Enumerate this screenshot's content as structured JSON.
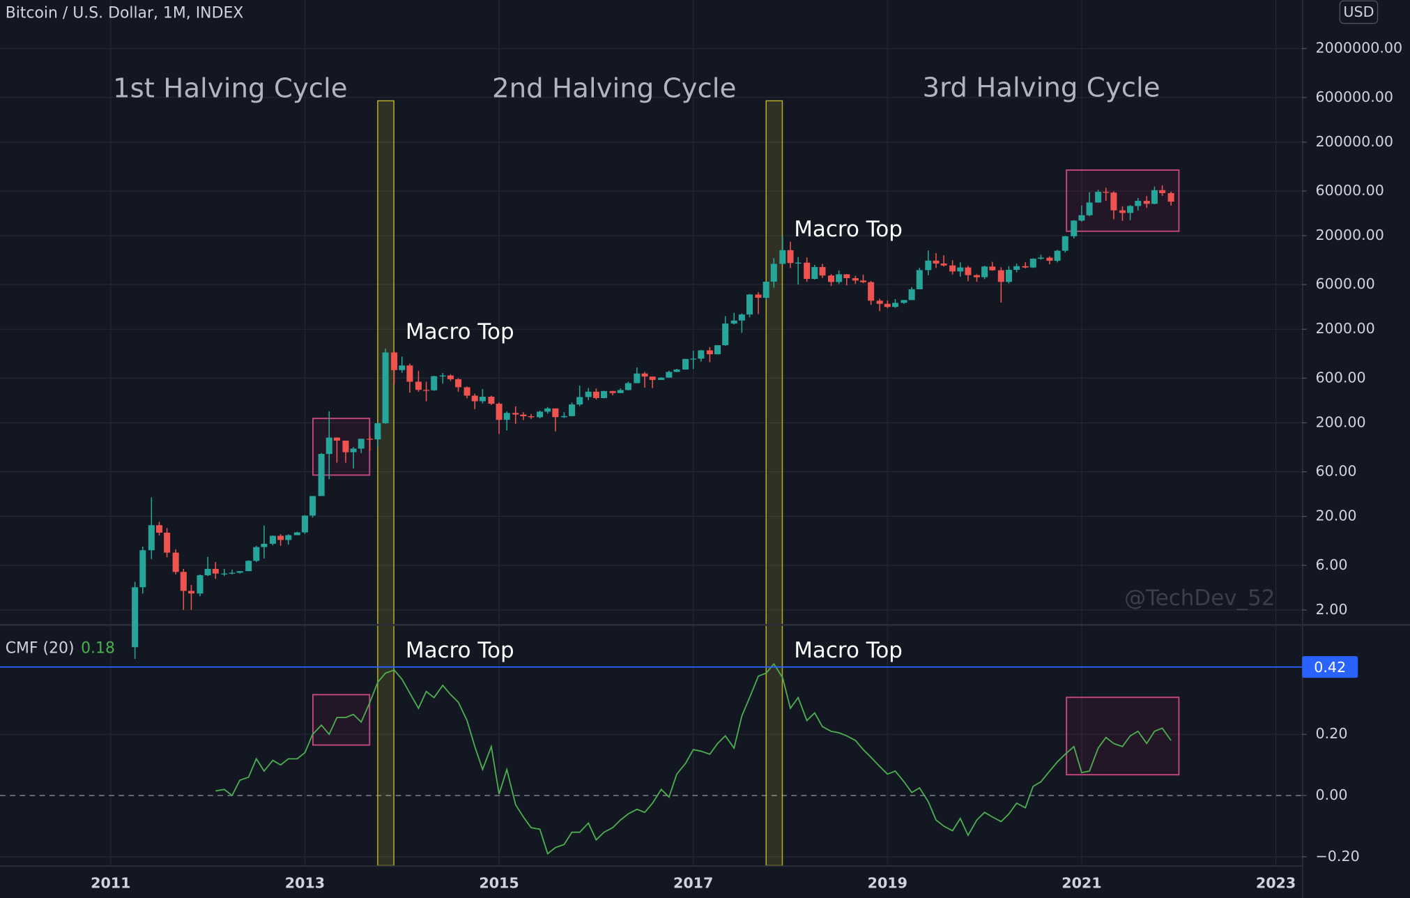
{
  "chart_data": {
    "type": "candlestick",
    "title": "Bitcoin / U.S. Dollar, 1M, INDEX",
    "currency": "USD",
    "x": [
      2011.25,
      2011.33,
      2011.42,
      2011.5,
      2011.58,
      2011.67,
      2011.75,
      2011.83,
      2011.92,
      2012,
      2012.08,
      2012.17,
      2012.25,
      2012.33,
      2012.42,
      2012.5,
      2012.58,
      2012.67,
      2012.75,
      2012.83,
      2012.92,
      2013,
      2013.08,
      2013.17,
      2013.25,
      2013.33,
      2013.42,
      2013.5,
      2013.58,
      2013.67,
      2013.75,
      2013.83,
      2013.92,
      2014,
      2014.08,
      2014.17,
      2014.25,
      2014.33,
      2014.42,
      2014.5,
      2014.58,
      2014.67,
      2014.75,
      2014.83,
      2014.92,
      2015,
      2015.08,
      2015.17,
      2015.25,
      2015.33,
      2015.42,
      2015.5,
      2015.58,
      2015.67,
      2015.75,
      2015.83,
      2015.92,
      2016,
      2016.08,
      2016.17,
      2016.25,
      2016.33,
      2016.42,
      2016.5,
      2016.58,
      2016.67,
      2016.75,
      2016.83,
      2016.92,
      2017,
      2017.08,
      2017.17,
      2017.25,
      2017.33,
      2017.42,
      2017.5,
      2017.58,
      2017.67,
      2017.75,
      2017.83,
      2017.92,
      2018,
      2018.08,
      2018.17,
      2018.25,
      2018.33,
      2018.42,
      2018.5,
      2018.58,
      2018.67,
      2018.75,
      2018.83,
      2018.92,
      2019,
      2019.08,
      2019.17,
      2019.25,
      2019.33,
      2019.42,
      2019.5,
      2019.58,
      2019.67,
      2019.75,
      2019.83,
      2019.92,
      2020,
      2020.08,
      2020.17,
      2020.25,
      2020.33,
      2020.42,
      2020.5,
      2020.58,
      2020.67,
      2020.75,
      2020.83,
      2020.92,
      2021,
      2021.08,
      2021.17,
      2021.25,
      2021.33,
      2021.42,
      2021.5,
      2021.58,
      2021.67,
      2021.75,
      2021.83,
      2021.92
    ],
    "xlim": [
      2009.86,
      2023.27
    ],
    "xticks": [
      2011,
      2013,
      2015,
      2017,
      2019,
      2021,
      2023
    ],
    "ylim": [
      1.4,
      6600000
    ],
    "log_scale": true,
    "grid": true,
    "yticks": [
      {
        "value": 2,
        "label": "2.00"
      },
      {
        "value": 6,
        "label": "6.00"
      },
      {
        "value": 20,
        "label": "20.00"
      },
      {
        "value": 60,
        "label": "60.00"
      },
      {
        "value": 200,
        "label": "200.00"
      },
      {
        "value": 600,
        "label": "600.00"
      },
      {
        "value": 2000,
        "label": "2000.00"
      },
      {
        "value": 6000,
        "label": "6000.00"
      },
      {
        "value": 20000,
        "label": "20000.00"
      },
      {
        "value": 60000,
        "label": "60000.00"
      },
      {
        "value": 200000,
        "label": "200000.00"
      },
      {
        "value": 600000,
        "label": "600000.00"
      },
      {
        "value": 2000000,
        "label": "2000000.00"
      }
    ],
    "y2lim": [
      -0.229,
      0.559
    ],
    "y2ticks": [
      {
        "value": 0.2,
        "label": "0.20"
      },
      {
        "value": 0,
        "label": "0.00"
      },
      {
        "value": -0.2,
        "label": "−0.20"
      }
    ],
    "series": [
      {
        "color_up": "#26a69a",
        "color_down": "#ef5350",
        "open": [
          0.8,
          3.5,
          8.7,
          16.1,
          13.4,
          8.2,
          5.1,
          3.2,
          3.0,
          4.7,
          5.5,
          4.9,
          4.9,
          5.0,
          5.2,
          6.7,
          9.4,
          10.2,
          12.4,
          11.2,
          12.6,
          13.5,
          20.4,
          33,
          93,
          139,
          129,
          97,
          106,
          135,
          133,
          198,
          1130,
          732,
          820,
          550,
          450,
          445,
          630,
          640,
          585,
          480,
          390,
          340,
          380,
          320,
          215,
          255,
          245,
          235,
          230,
          263,
          285,
          230,
          236,
          314,
          377,
          430,
          368,
          437,
          416,
          448,
          531,
          673,
          624,
          575,
          608,
          700,
          742,
          963,
          970,
          1190,
          1080,
          1350,
          2300,
          2480,
          2875,
          4700,
          4340,
          6450,
          10000,
          14000,
          10200,
          10300,
          6900,
          9240,
          7500,
          6400,
          7730,
          7030,
          6630,
          6370,
          4040,
          3740,
          3460,
          3830,
          4100,
          5350,
          8570,
          10820,
          10080,
          9600,
          8300,
          9150,
          7570,
          7200,
          9350,
          8540,
          6410,
          8630,
          9450,
          9140,
          11350,
          11650,
          10780,
          13800,
          19700,
          29000,
          33100,
          45200,
          58800,
          57700,
          37300,
          35000,
          41500,
          47100,
          43800,
          61300,
          57000
        ],
        "high": [
          4.0,
          9.5,
          31.9,
          17.5,
          15,
          8.9,
          5.5,
          3.7,
          4.8,
          7.4,
          6.5,
          5.5,
          5.4,
          5.2,
          6.8,
          9.7,
          16,
          12.5,
          12.9,
          12.9,
          13.7,
          20.6,
          33,
          95,
          266,
          140,
          129,
          110,
          135,
          145,
          200,
          1242,
          1160,
          1020,
          860,
          720,
          550,
          634,
          680,
          660,
          600,
          490,
          410,
          460,
          390,
          330,
          265,
          300,
          260,
          248,
          270,
          295,
          285,
          260,
          330,
          500,
          470,
          465,
          440,
          440,
          467,
          550,
          780,
          700,
          625,
          615,
          720,
          755,
          965,
          1180,
          1200,
          1290,
          1350,
          2760,
          2990,
          2950,
          4760,
          4980,
          6470,
          11500,
          19800,
          17250,
          11780,
          11700,
          9750,
          9980,
          7770,
          8500,
          7780,
          7450,
          7680,
          6560,
          4240,
          4070,
          4200,
          4120,
          5640,
          9060,
          13900,
          13000,
          12350,
          10930,
          10370,
          9510,
          7740,
          9560,
          10500,
          9190,
          9460,
          10080,
          10410,
          11450,
          12480,
          12050,
          14100,
          19880,
          29300,
          41950,
          58350,
          61790,
          64860,
          59500,
          41300,
          42400,
          50500,
          52900,
          67000,
          69000,
          59000
        ],
        "low": [
          0.6,
          3.0,
          7.0,
          12.5,
          7.3,
          4.8,
          2.0,
          2.0,
          2.8,
          4.6,
          4.3,
          4.6,
          4.8,
          4.9,
          5.2,
          6.5,
          7.1,
          9.8,
          9.7,
          10.0,
          12.6,
          13.0,
          19.5,
          33,
          50,
          75,
          75,
          65,
          95,
          100,
          110,
          195,
          520,
          685,
          420,
          430,
          340,
          440,
          525,
          560,
          430,
          365,
          280,
          323,
          310,
          152,
          166,
          195,
          214,
          220,
          223,
          250,
          162,
          225,
          235,
          301,
          350,
          355,
          365,
          394,
          415,
          444,
          530,
          475,
          470,
          575,
          605,
          697,
          740,
          752,
          900,
          890,
          1075,
          1330,
          2250,
          1830,
          2680,
          2910,
          4150,
          5550,
          9900,
          9040,
          6000,
          6430,
          6800,
          7050,
          5800,
          6100,
          5880,
          6100,
          6200,
          3650,
          3120,
          3350,
          3390,
          3740,
          4100,
          5350,
          7540,
          9060,
          9350,
          7710,
          7300,
          6530,
          6430,
          6870,
          8440,
          3850,
          6150,
          8120,
          8950,
          9040,
          11090,
          9900,
          10370,
          13220,
          18700,
          28150,
          32300,
          45000,
          47050,
          30000,
          28800,
          29300,
          37300,
          39600,
          43300,
          53300,
          42000
        ],
        "close": [
          3.5,
          8.7,
          16.1,
          13.4,
          8.2,
          5.1,
          3.2,
          3.0,
          4.7,
          5.5,
          4.9,
          4.9,
          5.0,
          5.2,
          6.7,
          9.4,
          10.2,
          12.4,
          11.2,
          12.6,
          13.5,
          20.4,
          33,
          93,
          139,
          129,
          97,
          106,
          135,
          133,
          198,
          1130,
          732,
          820,
          550,
          450,
          445,
          630,
          640,
          585,
          480,
          390,
          340,
          380,
          320,
          215,
          255,
          245,
          235,
          230,
          263,
          285,
          230,
          236,
          314,
          377,
          430,
          368,
          437,
          416,
          448,
          531,
          673,
          624,
          575,
          608,
          700,
          742,
          963,
          970,
          1190,
          1080,
          1350,
          2300,
          2480,
          2875,
          4700,
          4340,
          6450,
          10000,
          14000,
          10200,
          10300,
          6900,
          9240,
          7500,
          6400,
          7730,
          7030,
          6630,
          6370,
          4040,
          3740,
          3460,
          3830,
          4100,
          5350,
          8570,
          10820,
          10080,
          9600,
          8300,
          9150,
          7570,
          7200,
          9350,
          8540,
          6410,
          8630,
          9450,
          9140,
          11350,
          11650,
          10780,
          13800,
          19700,
          29000,
          33100,
          45200,
          58800,
          57700,
          37300,
          35000,
          41500,
          47100,
          43800,
          61300,
          57000,
          46200
        ]
      },
      {
        "name": "CMF (20)",
        "color": "#4caf50",
        "axis": "y2",
        "last_value": 0.18,
        "values": [
          null,
          null,
          null,
          null,
          null,
          null,
          null,
          null,
          null,
          null,
          0.015,
          0.02,
          0.0,
          0.05,
          0.06,
          0.12,
          0.08,
          0.115,
          0.1,
          0.12,
          0.12,
          0.14,
          0.2,
          0.23,
          0.2,
          0.255,
          0.255,
          0.265,
          0.24,
          0.305,
          0.37,
          0.4,
          0.41,
          0.38,
          0.335,
          0.285,
          0.34,
          0.32,
          0.36,
          0.33,
          0.305,
          0.245,
          0.16,
          0.085,
          0.16,
          0.005,
          0.085,
          -0.03,
          -0.07,
          -0.105,
          -0.11,
          -0.19,
          -0.17,
          -0.16,
          -0.12,
          -0.12,
          -0.09,
          -0.145,
          -0.12,
          -0.105,
          -0.08,
          -0.06,
          -0.045,
          -0.055,
          -0.025,
          0.02,
          -0.005,
          0.07,
          0.105,
          0.15,
          0.145,
          0.135,
          0.17,
          0.195,
          0.155,
          0.26,
          0.32,
          0.39,
          0.4,
          0.43,
          0.385,
          0.285,
          0.32,
          0.245,
          0.27,
          0.225,
          0.21,
          0.205,
          0.195,
          0.18,
          0.15,
          0.125,
          0.095,
          0.07,
          0.08,
          0.045,
          0.01,
          0.025,
          -0.02,
          -0.08,
          -0.1,
          -0.115,
          -0.075,
          -0.13,
          -0.08,
          -0.055,
          -0.07,
          -0.085,
          -0.06,
          -0.025,
          -0.04,
          0.03,
          0.045,
          0.08,
          0.11,
          0.135,
          0.16,
          0.075,
          0.08,
          0.155,
          0.19,
          0.17,
          0.16,
          0.195,
          0.21,
          0.17,
          0.21,
          0.22,
          0.18
        ]
      }
    ],
    "hline": {
      "value": 0.42,
      "color": "#2962ff",
      "axis": "y2"
    },
    "annotations": {
      "cycles": [
        "1st Halving Cycle",
        "2nd Halving Cycle",
        "3rd Halving Cycle"
      ],
      "macro_tops": [
        "Macro Top",
        "Macro Top",
        "Macro Top",
        "Macro Top"
      ],
      "watermark": "@TechDev_52"
    }
  }
}
